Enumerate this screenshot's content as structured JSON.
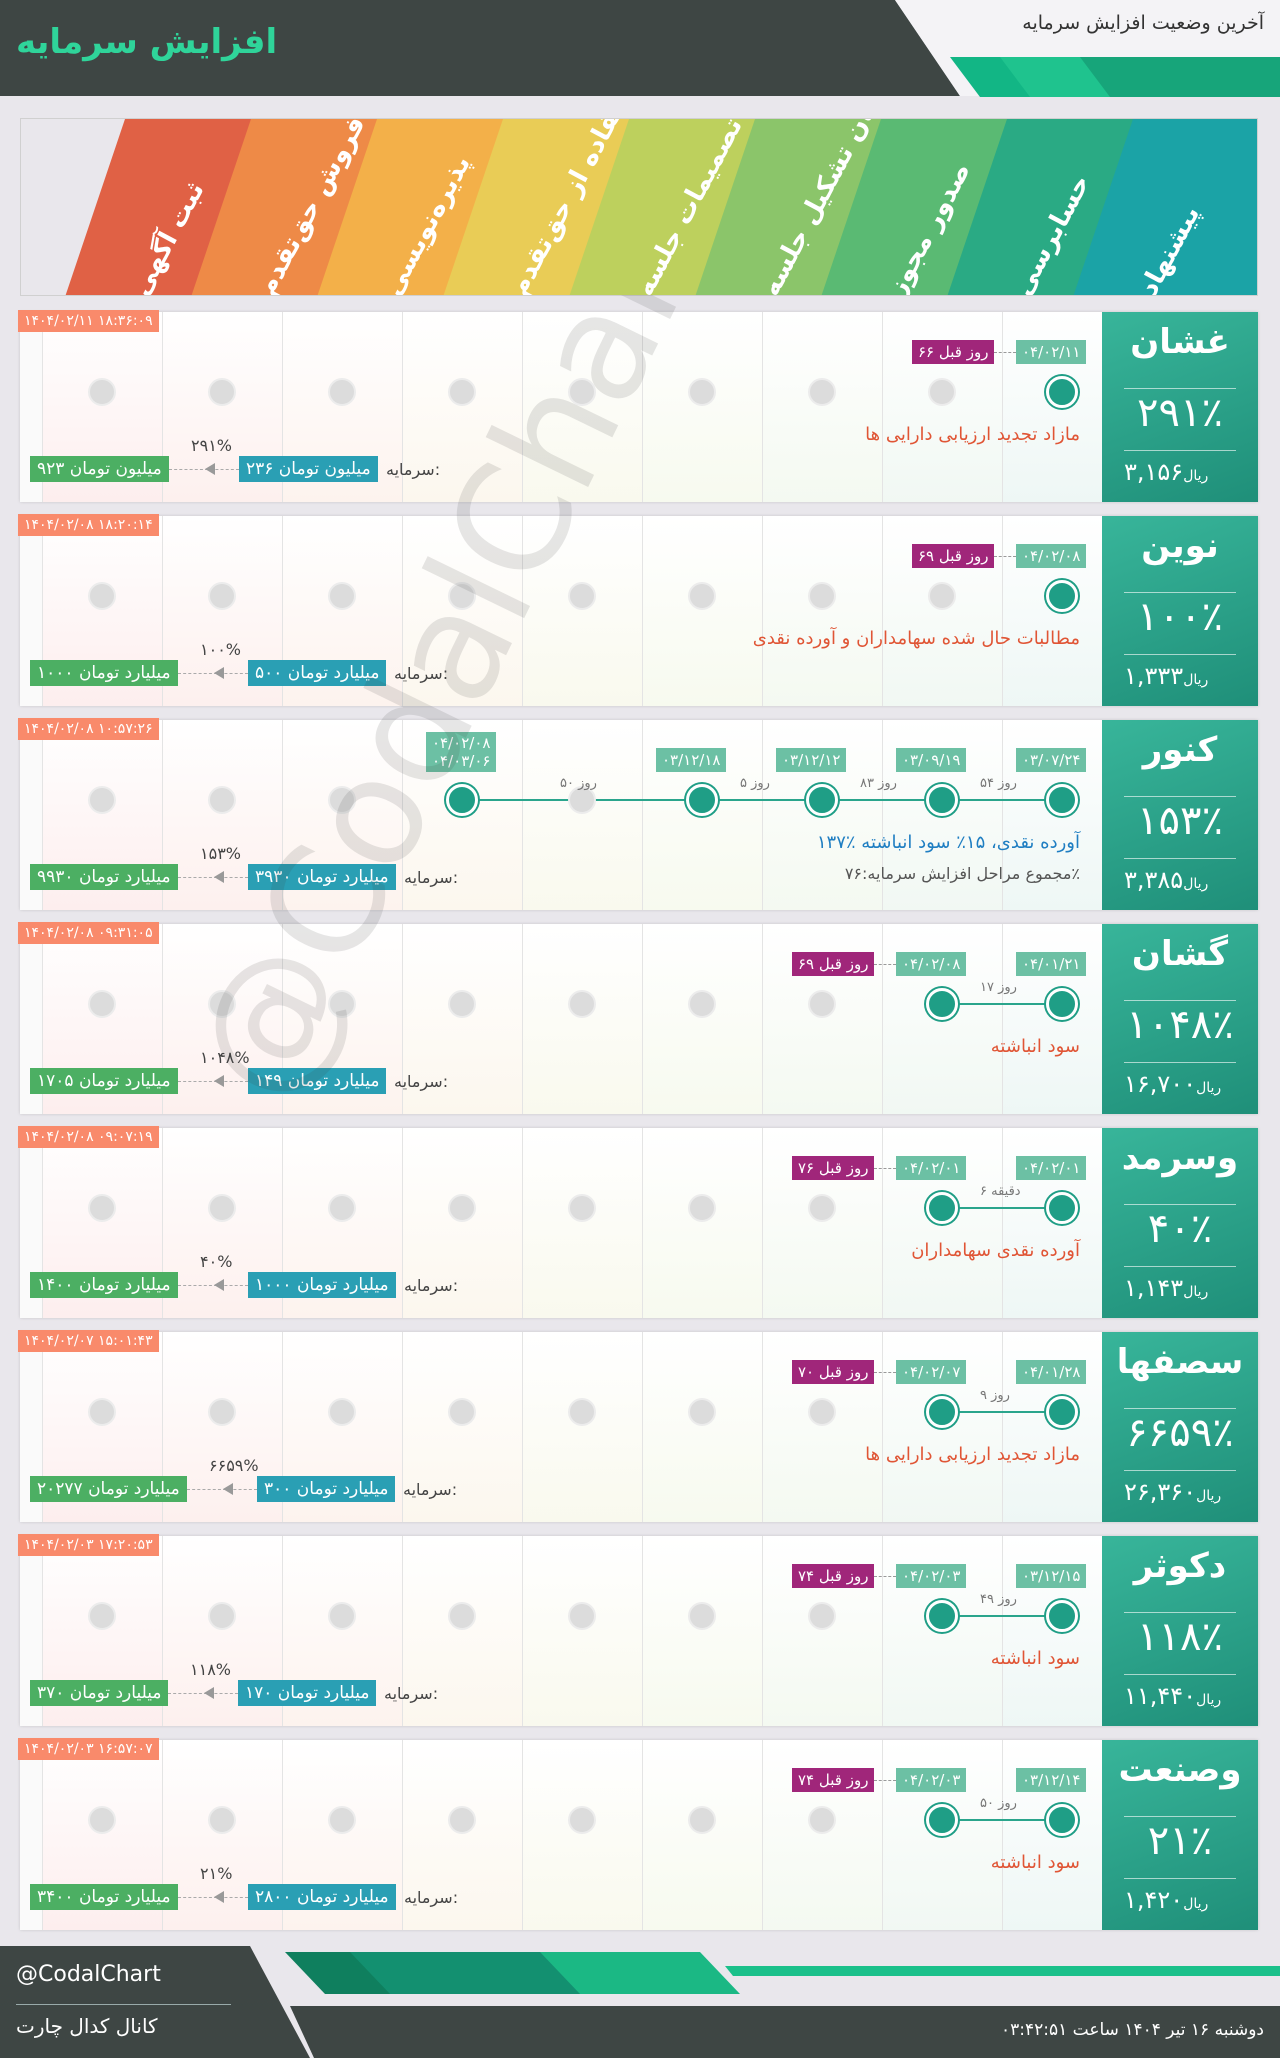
{
  "header": {
    "title": "افزایش سرمایه",
    "subtitle": "آخرین وضعیت افزایش سرمایه"
  },
  "stages": [
    {
      "label": "پیشنهاد",
      "color": "#1ba3a6"
    },
    {
      "label": "حسابرسی",
      "color": "#2aaa84"
    },
    {
      "label": "صدور مجوز",
      "color": "#5aba73"
    },
    {
      "label": "زمان تشکیل جلسه",
      "color": "#8bc56a"
    },
    {
      "label": "تصمیمات جلسه",
      "color": "#bdd05d"
    },
    {
      "label": "استفاده از حق‌تقدم",
      "color": "#e9cc56"
    },
    {
      "label": "پذیره‌نویسی",
      "color": "#f3b049"
    },
    {
      "label": "فروش حق‌تقدم",
      "color": "#ee8a47"
    },
    {
      "label": "ثبت آگهی",
      "color": "#e06145"
    }
  ],
  "cap_label": "سرمایه:",
  "cards": [
    {
      "symbol": "غشان",
      "percent": "۲۹۱٪",
      "price": "۳,۱۵۶",
      "currency": "ریال",
      "timestamp": "۱۴۰۴/۰۲/۱۱ ۱۸:۳۶:۰۹",
      "first_date": "۰۴/۰۲/۱۱",
      "ago": "۶۶ روز قبل",
      "reason": "مازاد تجدید ارزیابی دارایی ها",
      "reason_color": "red",
      "capital_before": "۲۳۶ میلیون تومان",
      "capital_after": "۹۲۳ میلیون تومان",
      "increase": "۲۹۱%",
      "active": [
        0
      ],
      "lines": [],
      "labels": [
        {
          "text": "۰۴/۰۲/۱۱",
          "stage": 0
        }
      ]
    },
    {
      "symbol": "نوین",
      "percent": "۱۰۰٪",
      "price": "۱,۳۳۳",
      "currency": "ریال",
      "timestamp": "۱۴۰۴/۰۲/۰۸ ۱۸:۲۰:۱۴",
      "ago": "۶۹ روز قبل",
      "reason": "مطالبات حال شده سهامداران و آورده نقدی",
      "reason_color": "red",
      "capital_before": "۵۰۰ میلیارد تومان",
      "capital_after": "۱۰۰۰ میلیارد تومان",
      "increase": "۱۰۰%",
      "active": [
        0
      ],
      "lines": [],
      "labels": [
        {
          "text": "۰۴/۰۲/۰۸",
          "stage": 0
        }
      ]
    },
    {
      "symbol": "کنور",
      "percent": "۱۵۳٪",
      "price": "۳,۳۸۵",
      "currency": "ریال",
      "timestamp": "۱۴۰۴/۰۲/۰۸ ۱۰:۵۷:۲۶",
      "reason": "۱۳۷٪ آورده نقدی، ۱۵٪ سود انباشته",
      "reason_color": "blue",
      "summary": "مجموع مراحل افزایش سرمایه:۷۶٪",
      "capital_before": "۳۹۳۰ میلیارد تومان",
      "capital_after": "۹۹۳۰ میلیارد تومان",
      "increase": "۱۵۳%",
      "active": [
        0,
        1,
        2,
        3,
        5
      ],
      "lines": [
        {
          "from": 0,
          "to": 5
        }
      ],
      "gaps": [
        {
          "text": "۵۴ روز",
          "between": [
            0,
            1
          ]
        },
        {
          "text": "۸۳ روز",
          "between": [
            1,
            2
          ]
        },
        {
          "text": "۵ روز",
          "between": [
            2,
            3
          ]
        },
        {
          "text": "۵۰ روز",
          "between": [
            3,
            5
          ]
        }
      ],
      "labels": [
        {
          "text": "۰۳/۰۷/۲۴",
          "stage": 0
        },
        {
          "text": "۰۳/۰۹/۱۹",
          "stage": 1
        },
        {
          "text": "۰۳/۱۲/۱۲",
          "stage": 2
        },
        {
          "text": "۰۳/۱۲/۱۸",
          "stage": 3
        }
      ],
      "double_label": {
        "line1": "۰۴/۰۲/۰۸",
        "line2": "۰۴/۰۳/۰۶",
        "stage": 5
      }
    },
    {
      "symbol": "گشان",
      "percent": "۱۰۴۸٪",
      "price": "۱۶,۷۰۰",
      "currency": "ریال",
      "timestamp": "۱۴۰۴/۰۲/۰۸ ۰۹:۳۱:۰۵",
      "ago": "۶۹ روز قبل",
      "reason": "سود انباشته",
      "reason_color": "red",
      "capital_before": "۱۴۹ میلیارد تومان",
      "capital_after": "۱۷۰۵ میلیارد تومان",
      "increase": "۱۰۴۸%",
      "active": [
        0,
        1
      ],
      "lines": [
        {
          "from": 0,
          "to": 1
        }
      ],
      "gaps": [
        {
          "text": "۱۷ روز",
          "between": [
            0,
            1
          ]
        }
      ],
      "labels": [
        {
          "text": "۰۴/۰۱/۲۱",
          "stage": 0
        },
        {
          "text": "۰۴/۰۲/۰۸",
          "stage": 1
        }
      ]
    },
    {
      "symbol": "وسرمد",
      "percent": "۴۰٪",
      "price": "۱,۱۴۳",
      "currency": "ریال",
      "timestamp": "۱۴۰۴/۰۲/۰۸ ۰۹:۰۷:۱۹",
      "ago": "۷۶ روز قبل",
      "reason": "آورده نقدی سهامداران",
      "reason_color": "red",
      "capital_before": "۱۰۰۰ میلیارد تومان",
      "capital_after": "۱۴۰۰ میلیارد تومان",
      "increase": "۴۰%",
      "active": [
        0,
        1
      ],
      "lines": [
        {
          "from": 0,
          "to": 1
        }
      ],
      "gaps": [
        {
          "text": "۶ دقیقه",
          "between": [
            0,
            1
          ]
        }
      ],
      "labels": [
        {
          "text": "۰۴/۰۲/۰۱",
          "stage": 0
        },
        {
          "text": "۰۴/۰۲/۰۱",
          "stage": 1
        }
      ]
    },
    {
      "symbol": "سصفها",
      "percent": "۶۶۵۹٪",
      "price": "۲۶,۳۶۰",
      "currency": "ریال",
      "timestamp": "۱۴۰۴/۰۲/۰۷ ۱۵:۰۱:۴۳",
      "ago": "۷۰ روز قبل",
      "reason": "مازاد تجدید ارزیابی دارایی ها",
      "reason_color": "red",
      "capital_before": "۳۰۰ میلیارد تومان",
      "capital_after": "۲۰۲۷۷ میلیارد تومان",
      "increase": "۶۶۵۹%",
      "active": [
        0,
        1
      ],
      "lines": [
        {
          "from": 0,
          "to": 1
        }
      ],
      "gaps": [
        {
          "text": "۹ روز",
          "between": [
            0,
            1
          ]
        }
      ],
      "labels": [
        {
          "text": "۰۴/۰۱/۲۸",
          "stage": 0
        },
        {
          "text": "۰۴/۰۲/۰۷",
          "stage": 1
        }
      ]
    },
    {
      "symbol": "دکوثر",
      "percent": "۱۱۸٪",
      "price": "۱۱,۴۴۰",
      "currency": "ریال",
      "timestamp": "۱۴۰۴/۰۲/۰۳ ۱۷:۲۰:۵۳",
      "ago": "۷۴ روز قبل",
      "reason": "سود انباشته",
      "reason_color": "red",
      "capital_before": "۱۷۰ میلیارد تومان",
      "capital_after": "۳۷۰ میلیارد تومان",
      "increase": "۱۱۸%",
      "active": [
        0,
        1
      ],
      "lines": [
        {
          "from": 0,
          "to": 1
        }
      ],
      "gaps": [
        {
          "text": "۴۹ روز",
          "between": [
            0,
            1
          ]
        }
      ],
      "labels": [
        {
          "text": "۰۳/۱۲/۱۵",
          "stage": 0
        },
        {
          "text": "۰۴/۰۲/۰۳",
          "stage": 1
        }
      ]
    },
    {
      "symbol": "وصنعت",
      "percent": "۲۱٪",
      "price": "۱,۴۲۰",
      "currency": "ریال",
      "timestamp": "۱۴۰۴/۰۲/۰۳ ۱۶:۵۷:۰۷",
      "ago": "۷۴ روز قبل",
      "reason": "سود انباشته",
      "reason_color": "red",
      "capital_before": "۲۸۰۰ میلیارد تومان",
      "capital_after": "۳۴۰۰ میلیارد تومان",
      "increase": "۲۱%",
      "active": [
        0,
        1
      ],
      "lines": [
        {
          "from": 0,
          "to": 1
        }
      ],
      "gaps": [
        {
          "text": "۵۰ روز",
          "between": [
            0,
            1
          ]
        }
      ],
      "labels": [
        {
          "text": "۰۳/۱۲/۱۴",
          "stage": 0
        },
        {
          "text": "۰۴/۰۲/۰۳",
          "stage": 1
        }
      ]
    }
  ],
  "watermark": "@CodalChart",
  "footer": {
    "handle": "@CodalChart",
    "channel": "کانال کدال چارت",
    "datetime": "دوشنبه ۱۶ تیر ۱۴۰۴ ساعت ۰۳:۴۲:۵۱"
  }
}
